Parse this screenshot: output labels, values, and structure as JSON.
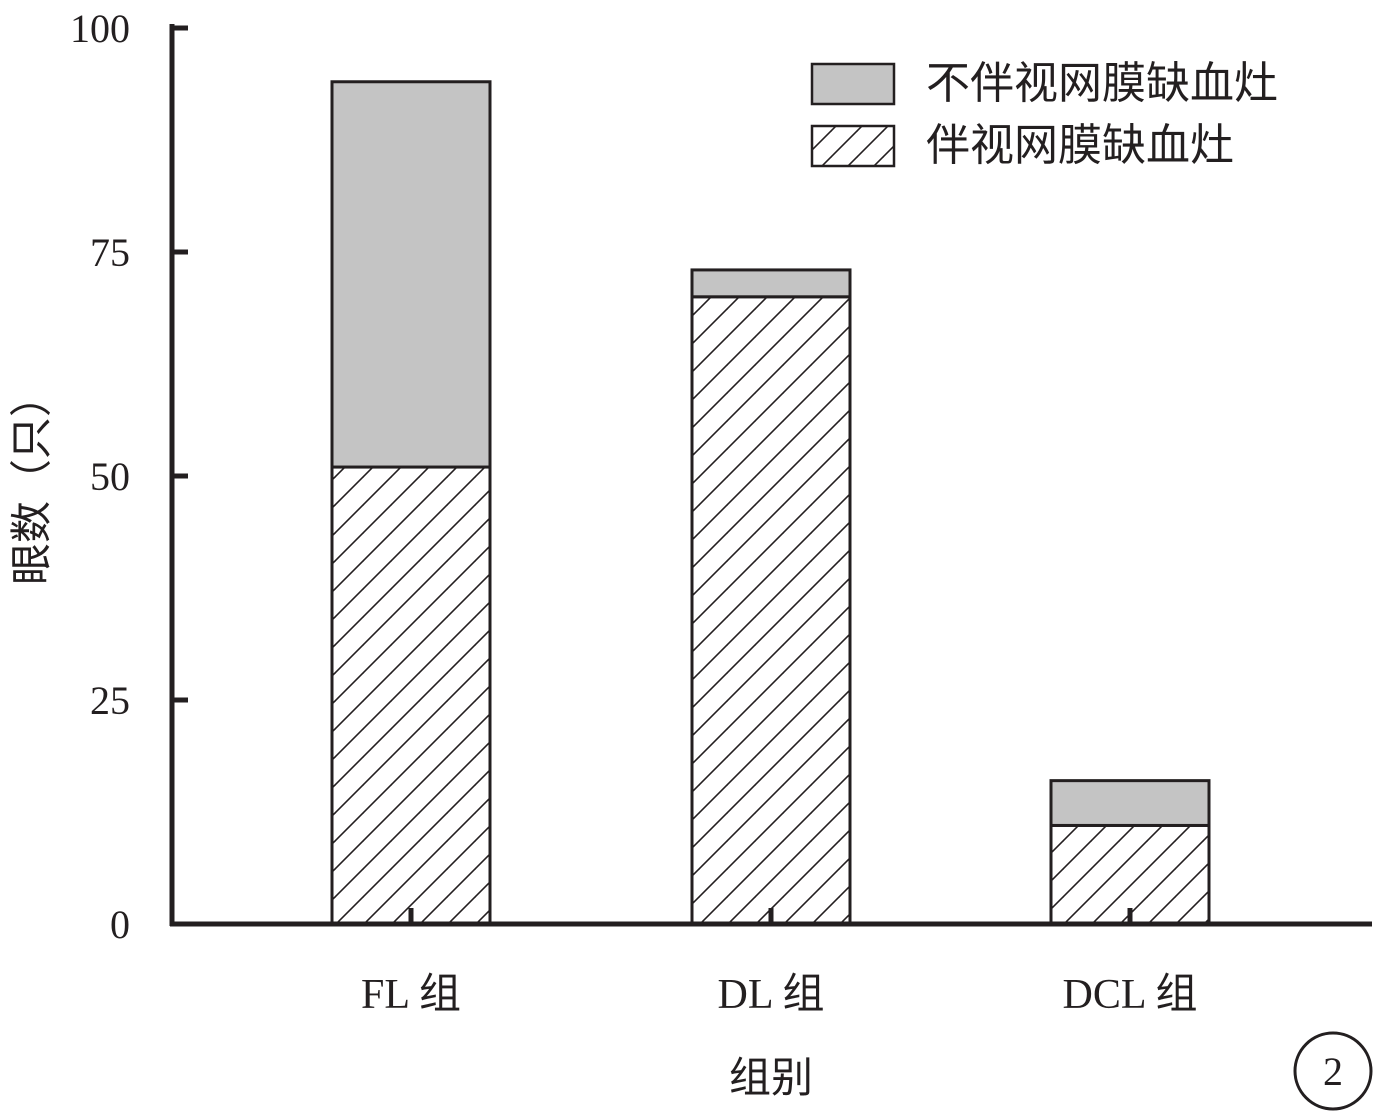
{
  "chart_data": {
    "type": "bar",
    "stacked": true,
    "categories": [
      "FL 组",
      "DL 组",
      "DCL 组"
    ],
    "series": [
      {
        "name": "伴视网膜缺血灶",
        "values": [
          51,
          70,
          11
        ],
        "fill": "hatch"
      },
      {
        "name": "不伴视网膜缺血灶",
        "values": [
          43,
          3,
          5
        ],
        "fill": "#c4c4c4"
      }
    ],
    "title": "",
    "xlabel": "组别",
    "ylabel": "眼数（只）",
    "ylim": [
      0,
      100
    ],
    "yticks": [
      "0",
      "25",
      "50",
      "75",
      "100"
    ],
    "ytick_values": [
      0,
      25,
      50,
      75,
      100
    ],
    "grid": false,
    "legend": "top-right",
    "legend_order": [
      1,
      0
    ]
  },
  "figure_label": "2",
  "colors": {
    "axis": "#231f20",
    "gray_fill": "#c4c4c4",
    "hatch_line": "#231f20"
  }
}
